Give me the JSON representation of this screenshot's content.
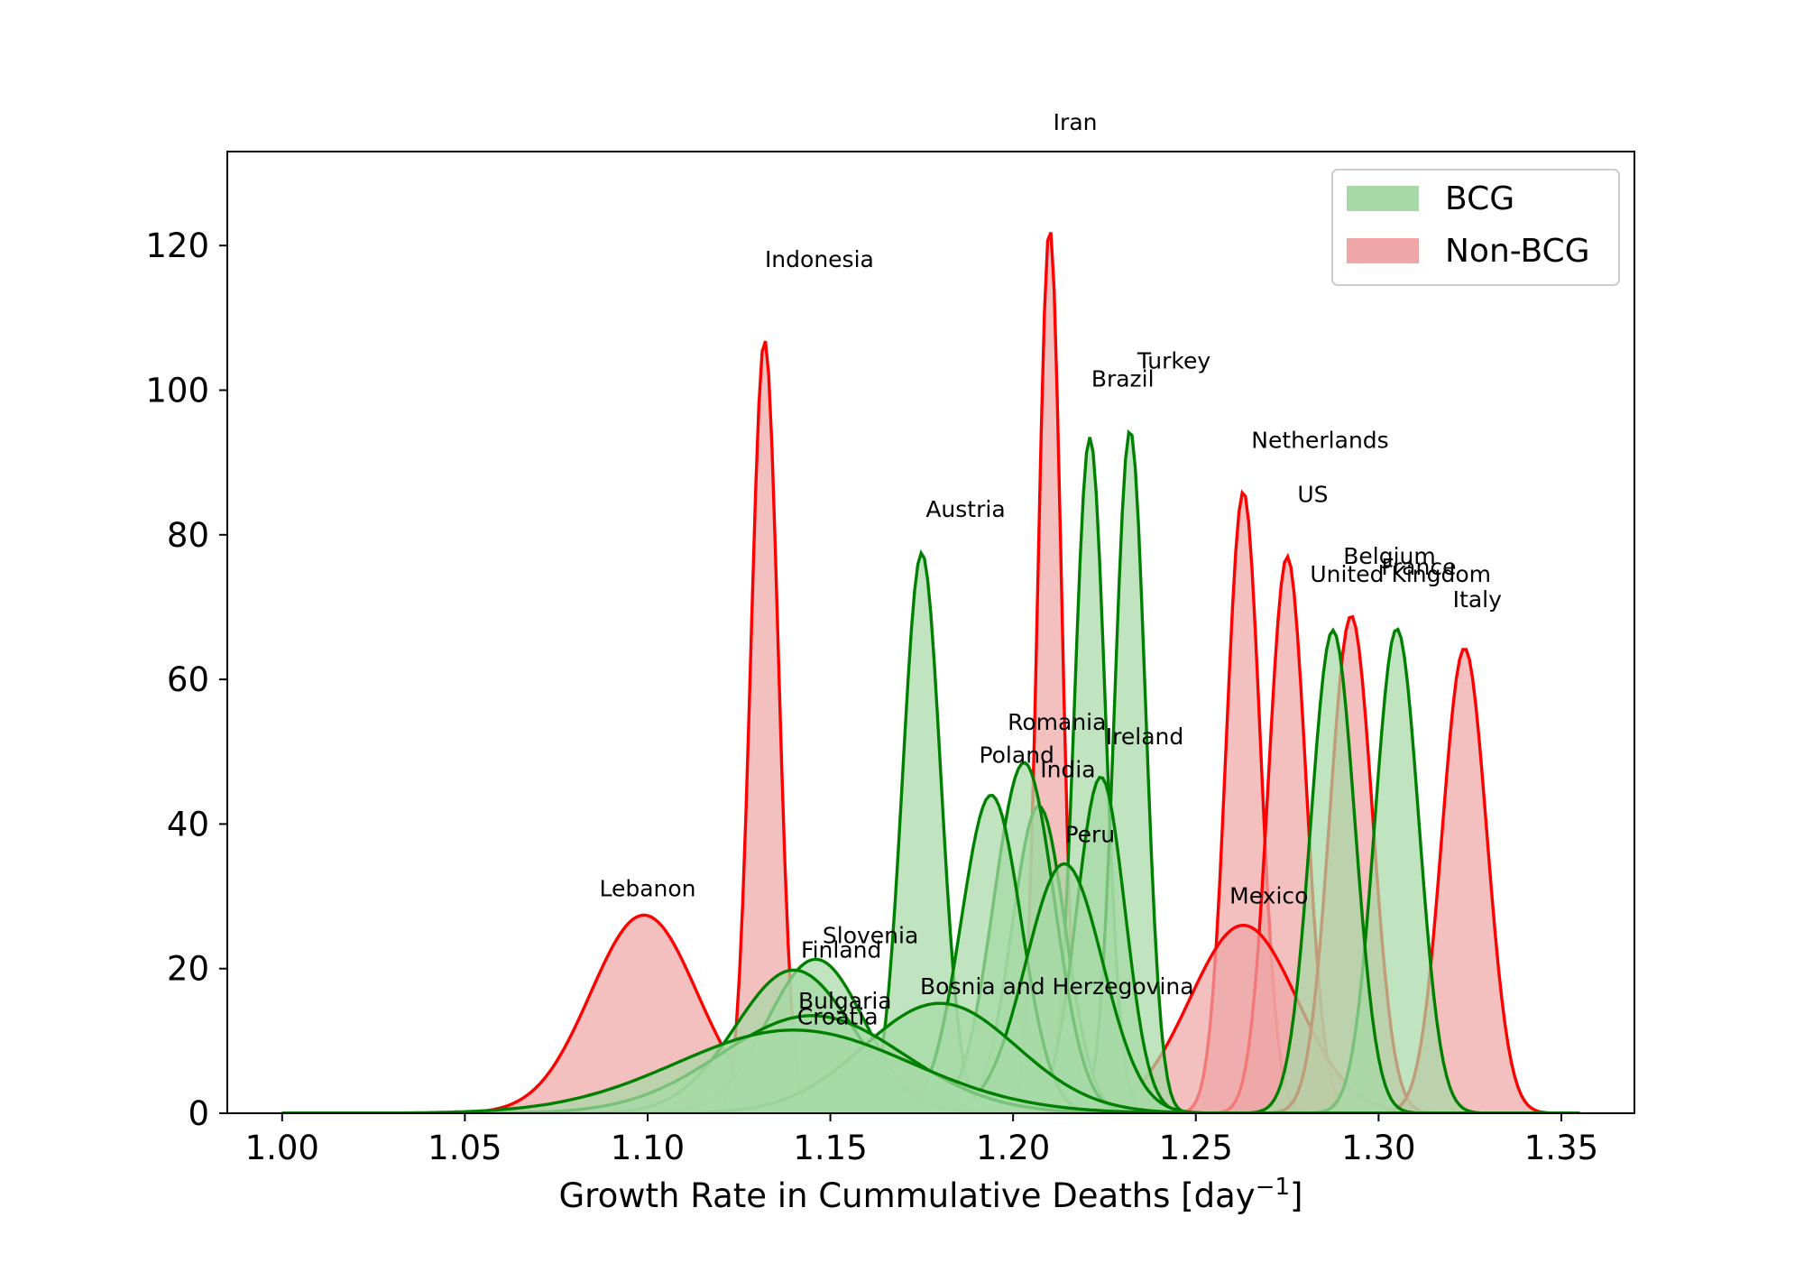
{
  "chart_data": {
    "type": "area",
    "title": "",
    "xlabel": "Growth Rate in Cummulative Deaths [day",
    "xlabel_sup": "−1",
    "xlabel_suffix": "]",
    "ylabel": "",
    "xlim": [
      0.985,
      1.37
    ],
    "ylim": [
      0,
      133
    ],
    "xticks": [
      1.0,
      1.05,
      1.1,
      1.15,
      1.2,
      1.25,
      1.3,
      1.35
    ],
    "xtick_labels": [
      "1.00",
      "1.05",
      "1.10",
      "1.15",
      "1.20",
      "1.25",
      "1.30",
      "1.35"
    ],
    "yticks": [
      0,
      20,
      40,
      60,
      80,
      100,
      120
    ],
    "ytick_labels": [
      "0",
      "20",
      "40",
      "60",
      "80",
      "100",
      "120"
    ],
    "grid": false,
    "legend_position": "top-right",
    "colors": {
      "BCG": "#008000",
      "Non-BCG": "#ff0000",
      "BCG_fill": "#a6d9a6",
      "NonBCG_fill": "#efa6a6"
    },
    "legend": [
      {
        "label": "BCG",
        "color": "#a6d9a6"
      },
      {
        "label": "Non-BCG",
        "color": "#efa6a6"
      }
    ],
    "series": [
      {
        "name": "Lebanon",
        "group": "Non-BCG",
        "mean": 1.099,
        "sd": 0.0146,
        "peak": 27.4,
        "label_pos": [
          1.1,
          30
        ]
      },
      {
        "name": "Indonesia",
        "group": "Non-BCG",
        "mean": 1.132,
        "sd": 0.0037,
        "peak": 107,
        "label_pos": [
          1.147,
          117
        ]
      },
      {
        "name": "Iran",
        "group": "Non-BCG",
        "mean": 1.21,
        "sd": 0.0032,
        "peak": 122.5,
        "label_pos": [
          1.217,
          136
        ]
      },
      {
        "name": "Netherlands",
        "group": "Non-BCG",
        "mean": 1.263,
        "sd": 0.0046,
        "peak": 86,
        "label_pos": [
          1.284,
          92
        ]
      },
      {
        "name": "US",
        "group": "Non-BCG",
        "mean": 1.275,
        "sd": 0.0051,
        "peak": 77,
        "label_pos": [
          1.282,
          84.5
        ]
      },
      {
        "name": "Mexico",
        "group": "Non-BCG",
        "mean": 1.263,
        "sd": 0.0147,
        "peak": 26,
        "label_pos": [
          1.27,
          29
        ]
      },
      {
        "name": "United Kingdom",
        "group": "Non-BCG",
        "mean": 1.2925,
        "sd": 0.0058,
        "peak": 68.8,
        "label_pos": [
          1.306,
          73.5
        ]
      },
      {
        "name": "Italy",
        "group": "Non-BCG",
        "mean": 1.3235,
        "sd": 0.0061,
        "peak": 64.3,
        "label_pos": [
          1.327,
          70
        ]
      },
      {
        "name": "Austria",
        "group": "BCG",
        "mean": 1.175,
        "sd": 0.0052,
        "peak": 77.5,
        "label_pos": [
          1.187,
          82.5
        ]
      },
      {
        "name": "Brazil",
        "group": "BCG",
        "mean": 1.221,
        "sd": 0.0042,
        "peak": 93.5,
        "label_pos": [
          1.23,
          100.5
        ]
      },
      {
        "name": "Turkey",
        "group": "BCG",
        "mean": 1.232,
        "sd": 0.0042,
        "peak": 94.5,
        "label_pos": [
          1.244,
          103
        ]
      },
      {
        "name": "Belgium",
        "group": "BCG",
        "mean": 1.305,
        "sd": 0.006,
        "peak": 67,
        "label_pos": [
          1.303,
          76
        ]
      },
      {
        "name": "France",
        "group": "BCG",
        "mean": 1.2875,
        "sd": 0.006,
        "peak": 66.8,
        "label_pos": [
          1.311,
          74.5
        ]
      },
      {
        "name": "Romania",
        "group": "BCG",
        "mean": 1.207,
        "sd": 0.0073,
        "peak": 42.5,
        "label_pos": [
          1.212,
          53
        ]
      },
      {
        "name": "Ireland",
        "group": "BCG",
        "mean": 1.224,
        "sd": 0.0066,
        "peak": 46.5,
        "label_pos": [
          1.236,
          51
        ]
      },
      {
        "name": "Poland",
        "group": "BCG",
        "mean": 1.203,
        "sd": 0.0083,
        "peak": 48.5,
        "label_pos": [
          1.201,
          48.5
        ]
      },
      {
        "name": "India",
        "group": "BCG",
        "mean": 1.194,
        "sd": 0.0082,
        "peak": 44,
        "label_pos": [
          1.215,
          46.5
        ]
      },
      {
        "name": "Peru",
        "group": "BCG",
        "mean": 1.214,
        "sd": 0.0105,
        "peak": 34.5,
        "label_pos": [
          1.221,
          37.5
        ]
      },
      {
        "name": "Slovenia",
        "group": "BCG",
        "mean": 1.146,
        "sd": 0.0132,
        "peak": 21.3,
        "label_pos": [
          1.161,
          23.5
        ]
      },
      {
        "name": "Finland",
        "group": "BCG",
        "mean": 1.14,
        "sd": 0.016,
        "peak": 19.8,
        "label_pos": [
          1.153,
          21.5
        ]
      },
      {
        "name": "Bosnia and Herzegovina",
        "group": "BCG",
        "mean": 1.18,
        "sd": 0.021,
        "peak": 15.2,
        "label_pos": [
          1.212,
          16.5
        ]
      },
      {
        "name": "Bulgaria",
        "group": "BCG",
        "mean": 1.145,
        "sd": 0.025,
        "peak": 13.5,
        "label_pos": [
          1.154,
          14.5
        ]
      },
      {
        "name": "Croatia",
        "group": "BCG",
        "mean": 1.14,
        "sd": 0.032,
        "peak": 11.5,
        "label_pos": [
          1.152,
          12.3
        ]
      }
    ]
  }
}
